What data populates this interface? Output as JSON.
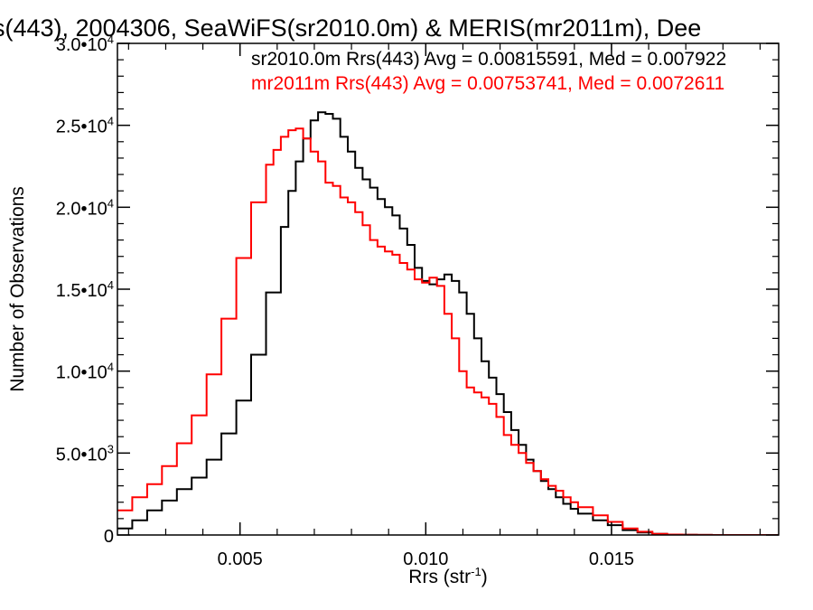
{
  "chart_data": {
    "type": "line",
    "title": "s(443), 2004306, SeaWiFS(sr2010.0m) & MERIS(mr2011m), Dee",
    "xlabel": "Rrs (str",
    "xlabel_sup": "-1",
    "xlabel_end": ")",
    "ylabel": "Number of Observations",
    "xlim": [
      0.0017,
      0.0195
    ],
    "ylim": [
      0,
      30000
    ],
    "x_ticks": [
      {
        "value": 0.005,
        "label": "0.005"
      },
      {
        "value": 0.01,
        "label": "0.010"
      },
      {
        "value": 0.015,
        "label": "0.015"
      }
    ],
    "y_ticks": [
      {
        "value": 0,
        "mantissa": "0",
        "exp": ""
      },
      {
        "value": 5000,
        "mantissa": "5.0•10",
        "exp": "3"
      },
      {
        "value": 10000,
        "mantissa": "1.0•10",
        "exp": "4"
      },
      {
        "value": 15000,
        "mantissa": "1.5•10",
        "exp": "4"
      },
      {
        "value": 20000,
        "mantissa": "2.0•10",
        "exp": "4"
      },
      {
        "value": 25000,
        "mantissa": "2.5•10",
        "exp": "4"
      },
      {
        "value": 30000,
        "mantissa": "3.0•10",
        "exp": "4"
      }
    ],
    "legend": [
      {
        "text": "sr2010.0m Rrs(443) Avg = 0.00815591, Med = 0.007922",
        "color": "#000000"
      },
      {
        "text": "mr2011m Rrs(443) Avg = 0.00753741, Med = 0.0072611",
        "color": "#ff0000"
      }
    ],
    "series": [
      {
        "color": "#000000",
        "x": [
          0.0017,
          0.0021,
          0.0025,
          0.0029,
          0.0033,
          0.0037,
          0.0041,
          0.0045,
          0.0049,
          0.0053,
          0.0057,
          0.0061,
          0.0063,
          0.0065,
          0.0067,
          0.0069,
          0.0071,
          0.0073,
          0.0075,
          0.0077,
          0.0079,
          0.0081,
          0.0083,
          0.0085,
          0.0087,
          0.0089,
          0.0091,
          0.0093,
          0.0095,
          0.0097,
          0.0099,
          0.0101,
          0.0103,
          0.0105,
          0.0107,
          0.0109,
          0.0111,
          0.0113,
          0.0115,
          0.0117,
          0.0119,
          0.0121,
          0.0123,
          0.0125,
          0.0127,
          0.0129,
          0.0131,
          0.0133,
          0.0135,
          0.0137,
          0.0139,
          0.0141,
          0.0145,
          0.0149,
          0.0153,
          0.0157,
          0.0161,
          0.0165,
          0.0169,
          0.0173,
          0.0177,
          0.0181,
          0.0185,
          0.019,
          0.0195
        ],
        "y": [
          400,
          900,
          1500,
          2100,
          2800,
          3500,
          4600,
          6200,
          8200,
          11000,
          14800,
          18800,
          21000,
          22800,
          24200,
          25300,
          25800,
          25700,
          25400,
          24300,
          23400,
          22400,
          21700,
          21200,
          20500,
          20000,
          19500,
          18700,
          17700,
          16300,
          15500,
          15300,
          15600,
          15900,
          15500,
          14800,
          13500,
          12000,
          10600,
          9600,
          8600,
          7500,
          6400,
          5500,
          4600,
          3900,
          3300,
          2800,
          2300,
          1900,
          1600,
          1300,
          900,
          600,
          300,
          150,
          70,
          30,
          10,
          5,
          0,
          0,
          0,
          0,
          0
        ]
      },
      {
        "color": "#ff0000",
        "x": [
          0.0017,
          0.0021,
          0.0025,
          0.0029,
          0.0033,
          0.0037,
          0.0041,
          0.0045,
          0.0049,
          0.0053,
          0.0057,
          0.0059,
          0.0061,
          0.0063,
          0.0065,
          0.0067,
          0.0069,
          0.0071,
          0.0073,
          0.0075,
          0.0077,
          0.0079,
          0.0081,
          0.0083,
          0.0085,
          0.0087,
          0.0089,
          0.0091,
          0.0093,
          0.0095,
          0.0097,
          0.0099,
          0.0101,
          0.0103,
          0.0105,
          0.0107,
          0.0109,
          0.0111,
          0.0113,
          0.0115,
          0.0117,
          0.0119,
          0.0121,
          0.0123,
          0.0125,
          0.0127,
          0.0129,
          0.0131,
          0.0133,
          0.0135,
          0.0137,
          0.0139,
          0.0141,
          0.0145,
          0.0149,
          0.0153,
          0.0157,
          0.0161,
          0.0165,
          0.0169,
          0.0173,
          0.0177,
          0.0181,
          0.0185,
          0.019,
          0.0195
        ],
        "y": [
          1500,
          2300,
          3100,
          4200,
          5600,
          7300,
          9800,
          13200,
          16900,
          20300,
          22600,
          23500,
          24300,
          24700,
          24800,
          24200,
          23400,
          22800,
          21500,
          21300,
          20600,
          20300,
          19700,
          18900,
          18000,
          17600,
          17300,
          17100,
          16600,
          16200,
          15600,
          15400,
          15700,
          15200,
          13500,
          12000,
          10000,
          9000,
          8700,
          8400,
          8000,
          7200,
          6100,
          5500,
          5000,
          4400,
          3900,
          3400,
          3000,
          2700,
          2300,
          2000,
          1700,
          1200,
          800,
          400,
          200,
          70,
          30,
          10,
          5,
          0,
          0,
          0,
          0,
          0
        ]
      }
    ]
  }
}
